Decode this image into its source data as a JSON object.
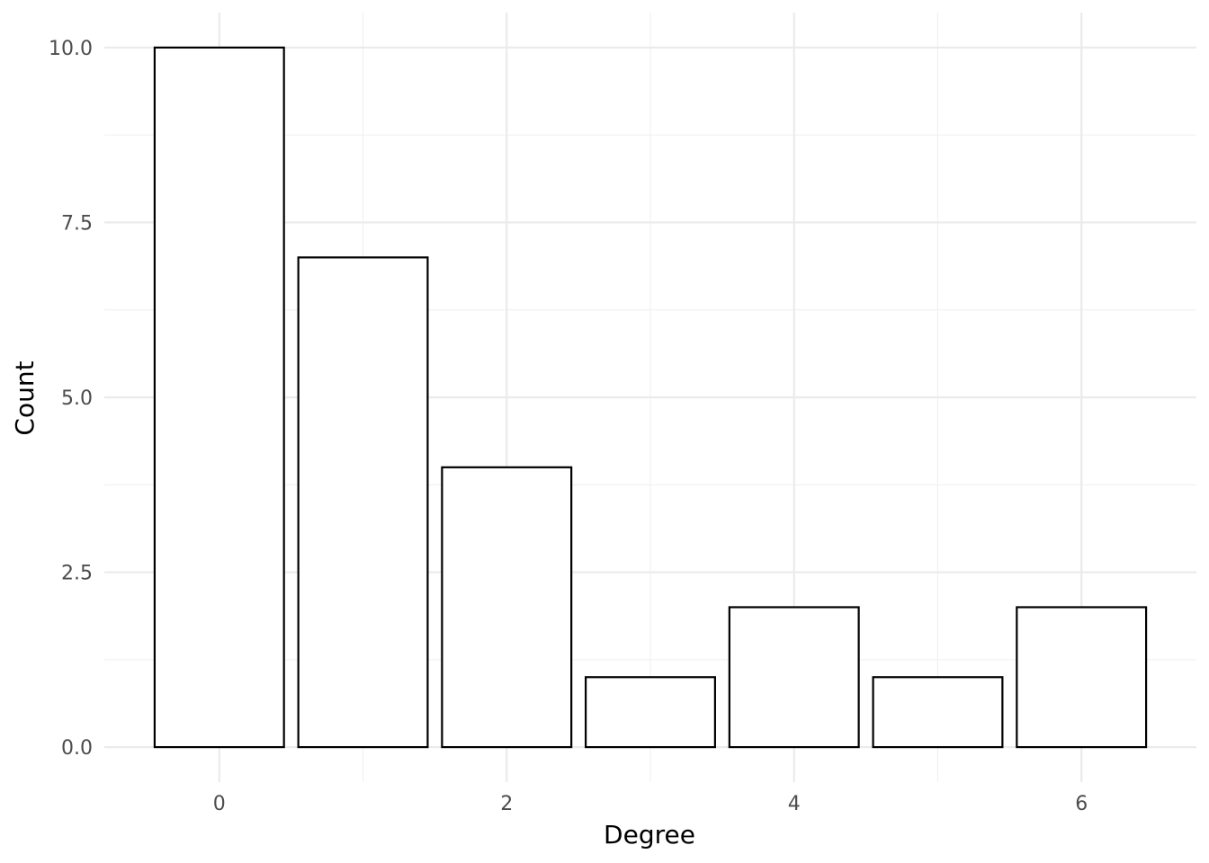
{
  "chart_data": {
    "type": "bar",
    "x": [
      0,
      1,
      2,
      3,
      4,
      5,
      6
    ],
    "values": [
      10,
      7,
      4,
      1,
      2,
      1,
      2
    ],
    "xlabel": "Degree",
    "ylabel": "Count",
    "x_ticks": [
      "0",
      "2",
      "4",
      "6"
    ],
    "y_ticks": [
      "0.0",
      "2.5",
      "5.0",
      "7.5",
      "10.0"
    ],
    "xlim": [
      -0.8,
      6.8
    ],
    "ylim": [
      -0.5,
      10.5
    ],
    "bar_fill": "#ffffff",
    "bar_outline": "#000000",
    "grid": true,
    "legend": "none"
  }
}
